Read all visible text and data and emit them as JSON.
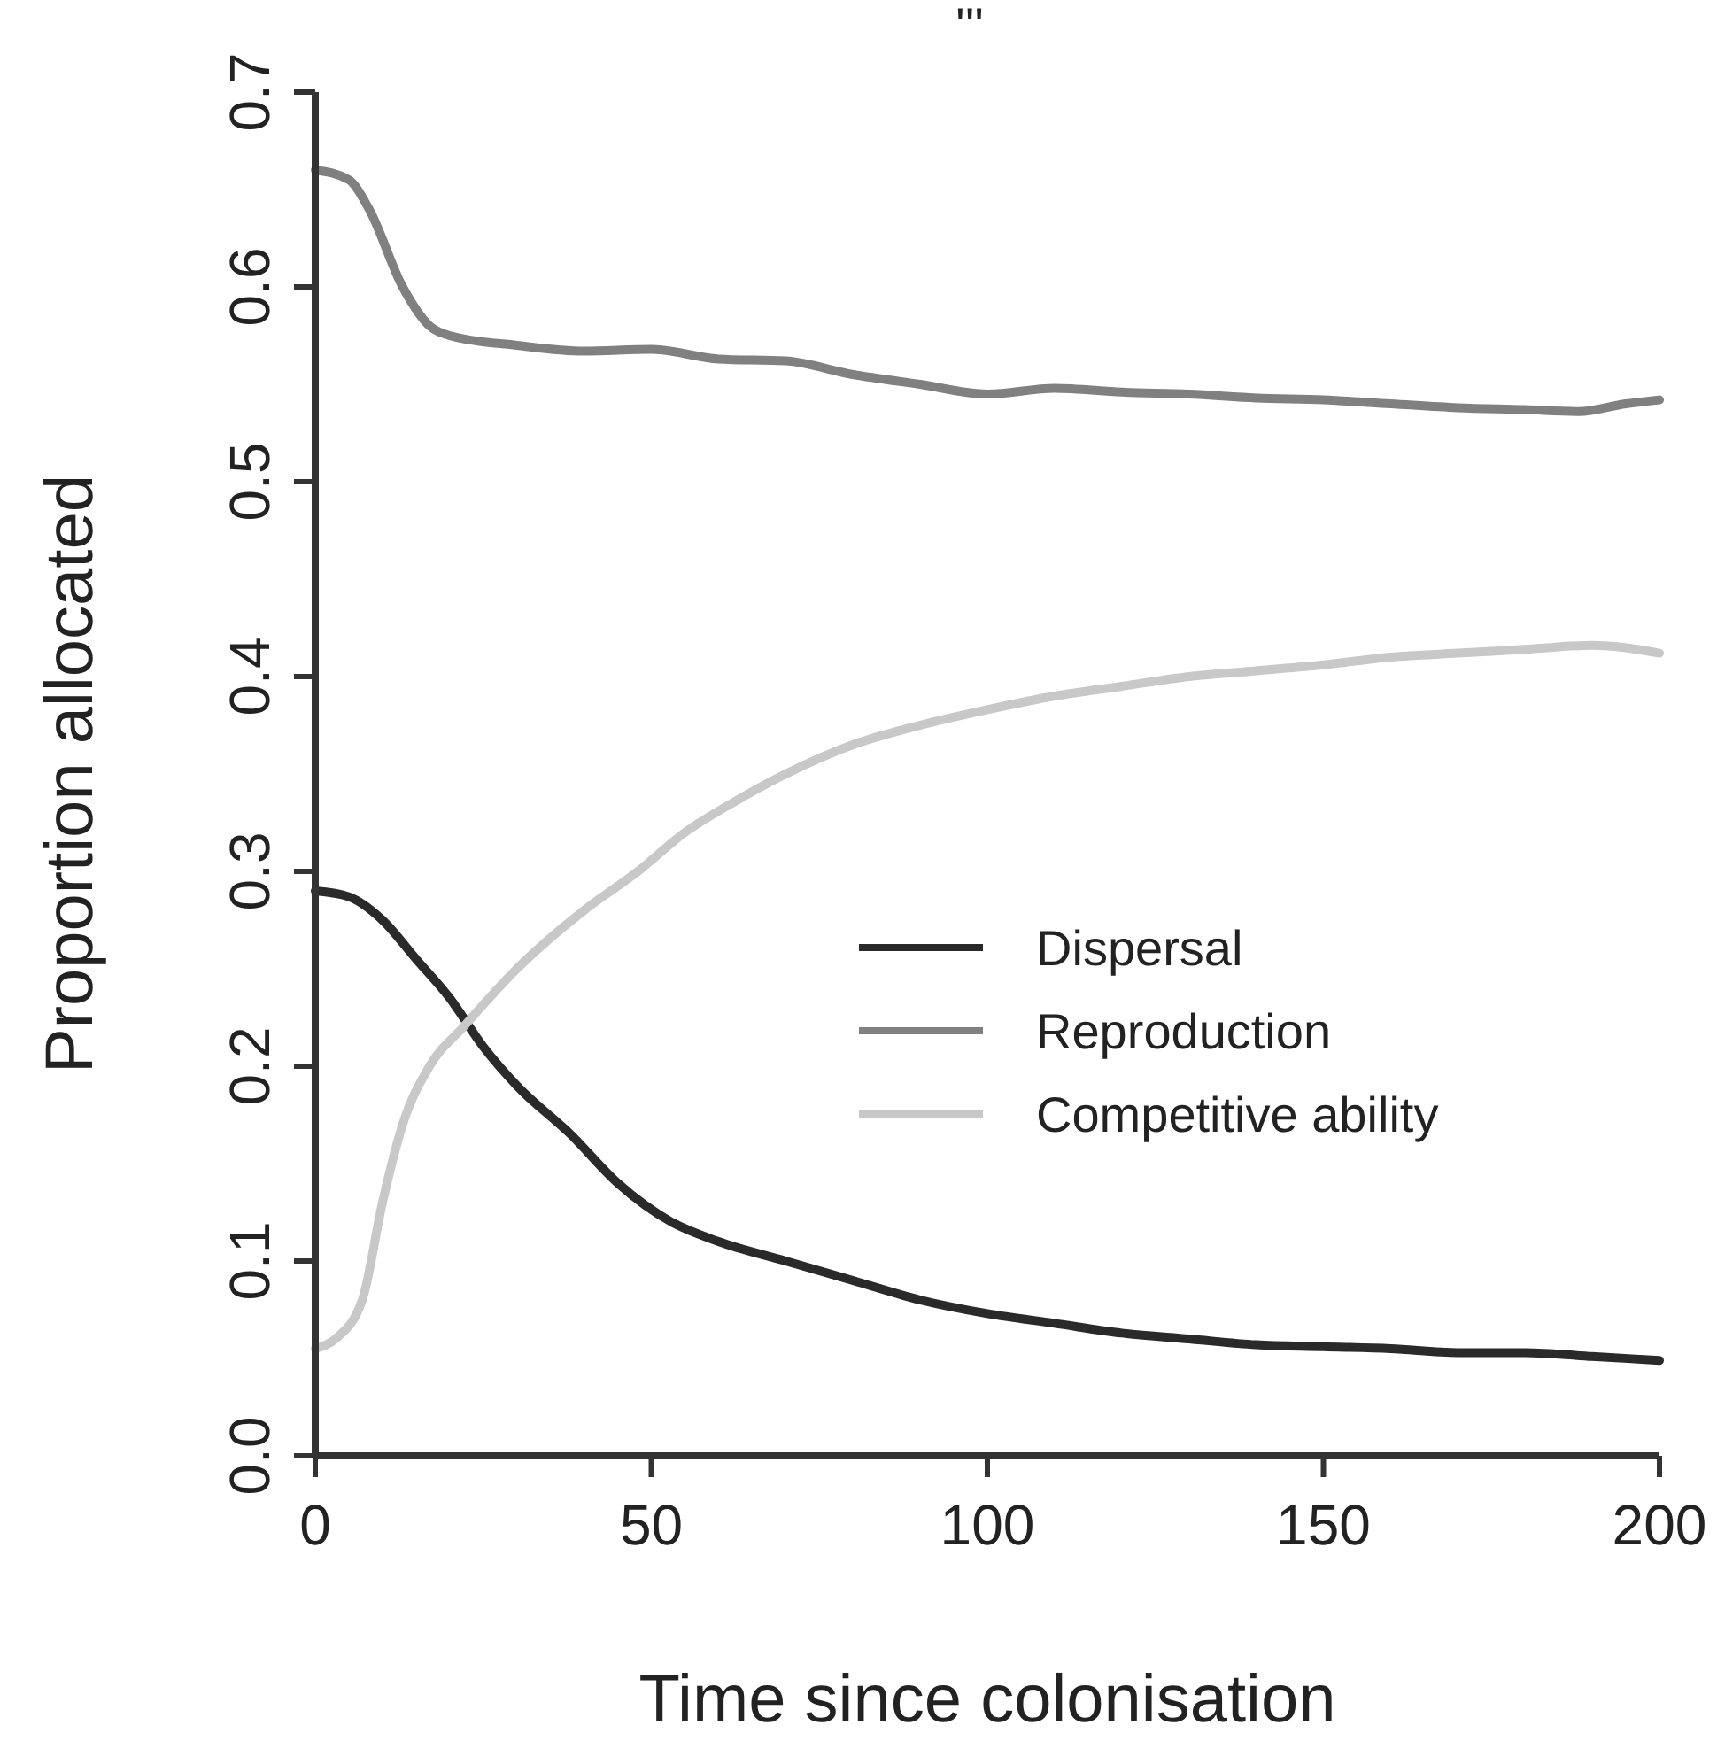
{
  "chart_data": {
    "type": "line",
    "title": "'''",
    "xlabel": "Time since colonisation",
    "ylabel": "Proportion allocated",
    "xlim": [
      0,
      200
    ],
    "xticks": [
      0,
      50,
      100,
      150,
      200
    ],
    "ylim": [
      0,
      0.7
    ],
    "yticks": [
      {
        "value": 0,
        "label": "0.0"
      },
      0.1,
      0.2,
      0.3,
      0.4,
      0.5,
      0.6,
      0.7
    ],
    "legend": "right",
    "grid": false,
    "marker": "none",
    "line_style": "solid",
    "series": [
      {
        "name": "Dispersal",
        "color": "#2a2a2a",
        "x": [
          0,
          5,
          10,
          15,
          20,
          25,
          30,
          38,
          45,
          53,
          60,
          70,
          80,
          90,
          100,
          110,
          120,
          130,
          140,
          150,
          160,
          170,
          180,
          190,
          200
        ],
        "values": [
          0.29,
          0.287,
          0.275,
          0.255,
          0.235,
          0.21,
          0.19,
          0.165,
          0.14,
          0.12,
          0.11,
          0.1,
          0.09,
          0.08,
          0.073,
          0.068,
          0.063,
          0.06,
          0.057,
          0.056,
          0.055,
          0.053,
          0.053,
          0.051,
          0.049
        ]
      },
      {
        "name": "Reproduction",
        "color": "#808080",
        "x": [
          0,
          5,
          8,
          13,
          17,
          20,
          30,
          40,
          50,
          60,
          70,
          80,
          90,
          100,
          110,
          120,
          130,
          140,
          150,
          160,
          170,
          180,
          188,
          195,
          200
        ],
        "values": [
          0.66,
          0.655,
          0.64,
          0.6,
          0.58,
          0.575,
          0.57,
          0.567,
          0.568,
          0.563,
          0.562,
          0.555,
          0.55,
          0.545,
          0.548,
          0.546,
          0.545,
          0.543,
          0.542,
          0.54,
          0.538,
          0.537,
          0.536,
          0.54,
          0.542
        ]
      },
      {
        "name": "Competitive ability",
        "color": "#c8c8c8",
        "x": [
          0,
          3,
          7,
          10,
          13,
          17,
          22,
          30,
          40,
          48,
          55,
          62,
          70,
          80,
          90,
          100,
          110,
          120,
          130,
          140,
          150,
          160,
          170,
          180,
          190,
          200
        ],
        "values": [
          0.055,
          0.06,
          0.08,
          0.13,
          0.17,
          0.2,
          0.22,
          0.25,
          0.28,
          0.3,
          0.32,
          0.335,
          0.35,
          0.365,
          0.375,
          0.383,
          0.39,
          0.395,
          0.4,
          0.403,
          0.406,
          0.41,
          0.412,
          0.414,
          0.416,
          0.412
        ]
      }
    ]
  }
}
